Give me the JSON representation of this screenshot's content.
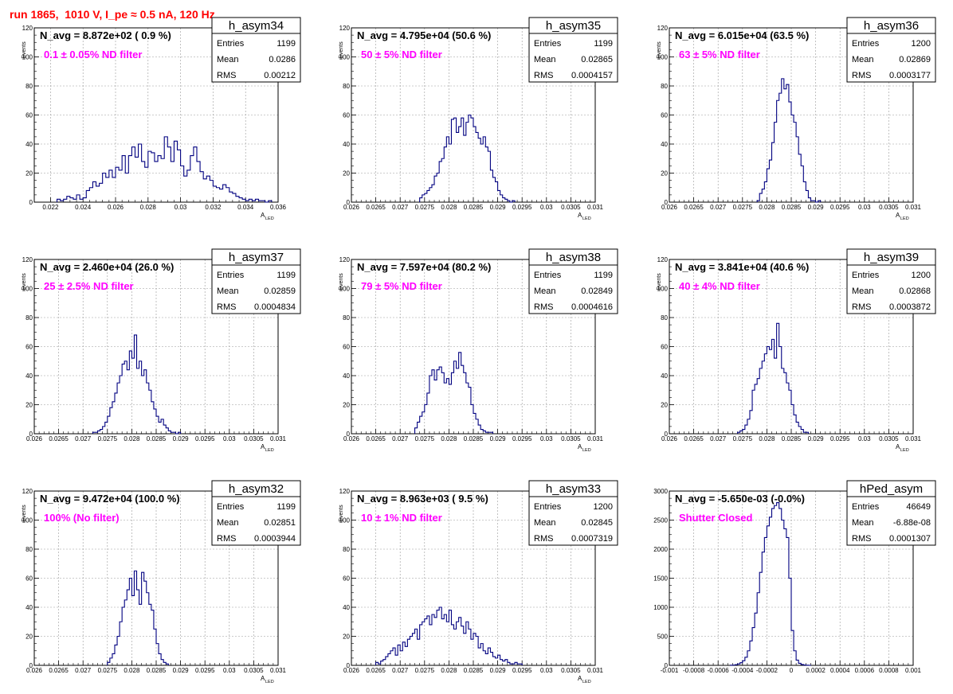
{
  "page_title": "run 1865,  1010 V, I_pe ≈ 0.5 nA, 120 Hz",
  "chart_data": [
    {
      "type": "bar",
      "name": "h_asym34",
      "navg": "N_avg = 8.872e+02 ( 0.9 %)",
      "annotation": "0.1 ± 0.05% ND filter",
      "stats": {
        "entries": "1199",
        "mean": "0.0286",
        "rms": "0.00212"
      },
      "xlabel": "A",
      "xlabel_sub": "LED",
      "ylabel": "Events",
      "xlim": [
        0.021,
        0.036
      ],
      "ylim": [
        0,
        120
      ],
      "xticks": [
        0.022,
        0.024,
        0.026,
        0.028,
        0.03,
        0.032,
        0.034,
        0.036
      ],
      "xtick_labels": [
        "0.022",
        "0.024",
        "0.026",
        "0.028",
        "0.03",
        "0.032",
        "0.034",
        "0.036"
      ],
      "yticks": [
        0,
        20,
        40,
        60,
        80,
        100,
        120
      ],
      "bin_start": 0.0224,
      "bin_width": 0.0002,
      "values": [
        2,
        1,
        2,
        4,
        3,
        2,
        5,
        2,
        3,
        8,
        10,
        14,
        11,
        13,
        20,
        17,
        22,
        17,
        24,
        22,
        32,
        20,
        32,
        38,
        31,
        40,
        28,
        24,
        35,
        34,
        28,
        32,
        30,
        45,
        38,
        28,
        42,
        36,
        25,
        18,
        22,
        32,
        38,
        28,
        21,
        16,
        18,
        15,
        11,
        10,
        9,
        12,
        10,
        7,
        6,
        4,
        3,
        2,
        1,
        2,
        1,
        2,
        1,
        1,
        0,
        1
      ]
    },
    {
      "type": "bar",
      "name": "h_asym35",
      "navg": "N_avg = 4.795e+04 (50.6 %)",
      "annotation": "50 ± 5% ND filter",
      "stats": {
        "entries": "1199",
        "mean": "0.02865",
        "rms": "0.0004157"
      },
      "xlabel": "A",
      "xlabel_sub": "LED",
      "ylabel": "Events",
      "xlim": [
        0.026,
        0.031
      ],
      "ylim": [
        0,
        120
      ],
      "xticks": [
        0.026,
        0.0265,
        0.027,
        0.0275,
        0.028,
        0.0285,
        0.029,
        0.0295,
        0.03,
        0.0305,
        0.031
      ],
      "xtick_labels": [
        "0.026",
        "0.0265",
        "0.027",
        "0.0275",
        "0.028",
        "0.0285",
        "0.029",
        "0.0295",
        "0.03",
        "0.0305",
        "0.031"
      ],
      "yticks": [
        0,
        20,
        40,
        60,
        80,
        100,
        120
      ],
      "bin_start": 0.0274,
      "bin_width": 5e-05,
      "values": [
        3,
        5,
        6,
        8,
        10,
        12,
        18,
        20,
        28,
        30,
        38,
        45,
        40,
        57,
        58,
        48,
        52,
        58,
        46,
        55,
        60,
        58,
        52,
        48,
        44,
        40,
        45,
        38,
        35,
        22,
        17,
        14,
        8,
        5,
        3,
        2,
        1,
        0,
        1
      ]
    },
    {
      "type": "bar",
      "name": "h_asym36",
      "navg": "N_avg = 6.015e+04 (63.5 %)",
      "annotation": "63 ± 5% ND filter",
      "stats": {
        "entries": "1200",
        "mean": "0.02869",
        "rms": "0.0003177"
      },
      "xlabel": "A",
      "xlabel_sub": "LED",
      "ylabel": "Events",
      "xlim": [
        0.026,
        0.031
      ],
      "ylim": [
        0,
        120
      ],
      "xticks": [
        0.026,
        0.0265,
        0.027,
        0.0275,
        0.028,
        0.0285,
        0.029,
        0.0295,
        0.03,
        0.0305,
        0.031
      ],
      "xtick_labels": [
        "0.026",
        "0.0265",
        "0.027",
        "0.0275",
        "0.028",
        "0.0285",
        "0.029",
        "0.0295",
        "0.03",
        "0.0305",
        "0.031"
      ],
      "yticks": [
        0,
        20,
        40,
        60,
        80,
        100,
        120
      ],
      "bin_start": 0.0278,
      "bin_width": 5e-05,
      "values": [
        1,
        6,
        9,
        14,
        23,
        29,
        41,
        55,
        70,
        75,
        85,
        78,
        81,
        69,
        60,
        55,
        45,
        33,
        25,
        14,
        8,
        3,
        1,
        1,
        0,
        1
      ]
    },
    {
      "type": "bar",
      "name": "h_asym37",
      "navg": "N_avg = 2.460e+04 (26.0 %)",
      "annotation": "25 ± 2.5% ND filter",
      "stats": {
        "entries": "1199",
        "mean": "0.02859",
        "rms": "0.0004834"
      },
      "xlabel": "A",
      "xlabel_sub": "LED",
      "ylabel": "Events",
      "xlim": [
        0.026,
        0.031
      ],
      "ylim": [
        0,
        120
      ],
      "xticks": [
        0.026,
        0.0265,
        0.027,
        0.0275,
        0.028,
        0.0285,
        0.029,
        0.0295,
        0.03,
        0.0305,
        0.031
      ],
      "xtick_labels": [
        "0.026",
        "0.0265",
        "0.027",
        "0.0275",
        "0.028",
        "0.0285",
        "0.029",
        "0.0295",
        "0.03",
        "0.0305",
        "0.031"
      ],
      "yticks": [
        0,
        20,
        40,
        60,
        80,
        100,
        120
      ],
      "bin_start": 0.0272,
      "bin_width": 5e-05,
      "values": [
        1,
        1,
        2,
        3,
        5,
        8,
        12,
        18,
        22,
        28,
        35,
        40,
        48,
        50,
        44,
        57,
        52,
        68,
        45,
        50,
        40,
        44,
        35,
        30,
        22,
        17,
        12,
        8,
        10,
        6,
        4,
        2,
        1,
        1,
        0,
        1
      ]
    },
    {
      "type": "bar",
      "name": "h_asym38",
      "navg": "N_avg = 7.597e+04 (80.2 %)",
      "annotation": "79 ± 5% ND filter",
      "stats": {
        "entries": "1199",
        "mean": "0.02849",
        "rms": "0.0004616"
      },
      "xlabel": "A",
      "xlabel_sub": "LED",
      "ylabel": "Events",
      "xlim": [
        0.026,
        0.031
      ],
      "ylim": [
        0,
        120
      ],
      "xticks": [
        0.026,
        0.0265,
        0.027,
        0.0275,
        0.028,
        0.0285,
        0.029,
        0.0295,
        0.03,
        0.0305,
        0.031
      ],
      "xtick_labels": [
        "0.026",
        "0.0265",
        "0.027",
        "0.0275",
        "0.028",
        "0.0285",
        "0.029",
        "0.0295",
        "0.03",
        "0.0305",
        "0.031"
      ],
      "yticks": [
        0,
        20,
        40,
        60,
        80,
        100,
        120
      ],
      "bin_start": 0.0273,
      "bin_width": 5e-05,
      "values": [
        4,
        8,
        12,
        15,
        20,
        28,
        40,
        44,
        37,
        44,
        46,
        42,
        35,
        38,
        34,
        42,
        50,
        45,
        56,
        47,
        42,
        35,
        32,
        20,
        14,
        10,
        6,
        3,
        2,
        1,
        1,
        1
      ]
    },
    {
      "type": "bar",
      "name": "h_asym39",
      "navg": "N_avg = 3.841e+04 (40.6 %)",
      "annotation": "40 ± 4% ND filter",
      "stats": {
        "entries": "1200",
        "mean": "0.02868",
        "rms": "0.0003872"
      },
      "xlabel": "A",
      "xlabel_sub": "LED",
      "ylabel": "Events",
      "xlim": [
        0.026,
        0.031
      ],
      "ylim": [
        0,
        120
      ],
      "xticks": [
        0.026,
        0.0265,
        0.027,
        0.0275,
        0.028,
        0.0285,
        0.029,
        0.0295,
        0.03,
        0.0305,
        0.031
      ],
      "xtick_labels": [
        "0.026",
        "0.0265",
        "0.027",
        "0.0275",
        "0.028",
        "0.0285",
        "0.029",
        "0.0295",
        "0.03",
        "0.0305",
        "0.031"
      ],
      "yticks": [
        0,
        20,
        40,
        60,
        80,
        100,
        120
      ],
      "bin_start": 0.0274,
      "bin_width": 5e-05,
      "values": [
        1,
        2,
        3,
        6,
        10,
        16,
        30,
        34,
        38,
        45,
        50,
        55,
        60,
        58,
        65,
        52,
        76,
        60,
        45,
        42,
        35,
        30,
        20,
        13,
        8,
        5,
        3,
        1,
        1
      ]
    },
    {
      "type": "bar",
      "name": "h_asym32",
      "navg": "N_avg = 9.472e+04 (100.0 %)",
      "annotation": "100% (No filter)",
      "stats": {
        "entries": "1199",
        "mean": "0.02851",
        "rms": "0.0003944"
      },
      "xlabel": "A",
      "xlabel_sub": "LED",
      "ylabel": "Events",
      "xlim": [
        0.026,
        0.031
      ],
      "ylim": [
        0,
        120
      ],
      "xticks": [
        0.026,
        0.0265,
        0.027,
        0.0275,
        0.028,
        0.0285,
        0.029,
        0.0295,
        0.03,
        0.0305,
        0.031
      ],
      "xtick_labels": [
        "0.026",
        "0.0265",
        "0.027",
        "0.0275",
        "0.028",
        "0.0285",
        "0.029",
        "0.0295",
        "0.03",
        "0.0305",
        "0.031"
      ],
      "yticks": [
        0,
        20,
        40,
        60,
        80,
        100,
        120
      ],
      "bin_start": 0.0275,
      "bin_width": 5e-05,
      "values": [
        2,
        5,
        8,
        14,
        20,
        30,
        40,
        45,
        52,
        60,
        48,
        65,
        52,
        42,
        64,
        58,
        50,
        42,
        38,
        25,
        15,
        8,
        4,
        2,
        1
      ]
    },
    {
      "type": "bar",
      "name": "h_asym33",
      "navg": "N_avg = 8.963e+03 ( 9.5 %)",
      "annotation": "10 ± 1% ND filter",
      "stats": {
        "entries": "1200",
        "mean": "0.02845",
        "rms": "0.0007319"
      },
      "xlabel": "A",
      "xlabel_sub": "LED",
      "ylabel": "Events",
      "xlim": [
        0.026,
        0.031
      ],
      "ylim": [
        0,
        120
      ],
      "xticks": [
        0.026,
        0.0265,
        0.027,
        0.0275,
        0.028,
        0.0285,
        0.029,
        0.0295,
        0.03,
        0.0305,
        0.031
      ],
      "xtick_labels": [
        "0.026",
        "0.0265",
        "0.027",
        "0.0275",
        "0.028",
        "0.0285",
        "0.029",
        "0.0295",
        "0.03",
        "0.0305",
        "0.031"
      ],
      "yticks": [
        0,
        20,
        40,
        60,
        80,
        100,
        120
      ],
      "bin_start": 0.0265,
      "bin_width": 5e-05,
      "values": [
        2,
        1,
        3,
        4,
        6,
        8,
        10,
        12,
        7,
        14,
        10,
        16,
        13,
        18,
        20,
        22,
        25,
        18,
        28,
        30,
        32,
        34,
        28,
        35,
        33,
        38,
        40,
        32,
        35,
        30,
        38,
        28,
        25,
        30,
        33,
        27,
        22,
        30,
        25,
        18,
        22,
        20,
        12,
        15,
        10,
        8,
        12,
        9,
        6,
        5,
        7,
        4,
        3,
        4,
        2,
        1,
        1,
        2,
        1,
        1
      ]
    },
    {
      "type": "bar",
      "name": "hPed_asym",
      "navg": "N_avg = -5.650e-03 (-0.0%)",
      "annotation": "Shutter Closed",
      "stats": {
        "entries": "46649",
        "mean": "-6.88e-08",
        "rms": "0.0001307"
      },
      "xlabel": "",
      "xlabel_sub": "",
      "ylabel": "",
      "xlim": [
        -0.001,
        0.001
      ],
      "ylim": [
        0,
        3000
      ],
      "xticks": [
        -0.001,
        -0.0008,
        -0.0006,
        -0.0004,
        -0.0002,
        0,
        0.0002,
        0.0004,
        0.0006,
        0.0008,
        0.001
      ],
      "xtick_labels": [
        "-0.001",
        "-0.0008",
        "-0.0006",
        "-0.0004",
        "-0.0002",
        "0",
        "0.0002",
        "0.0004",
        "0.0006",
        "0.0008",
        "0.001"
      ],
      "yticks": [
        0,
        500,
        1000,
        1500,
        2000,
        2500,
        3000
      ],
      "bin_start": -0.0005,
      "bin_width": 2e-05,
      "values": [
        2,
        5,
        12,
        25,
        45,
        80,
        140,
        250,
        420,
        650,
        900,
        1250,
        1600,
        1950,
        2200,
        2400,
        2550,
        2700,
        2750,
        2800,
        2700,
        2500,
        2350,
        2200,
        1500,
        600,
        250,
        90,
        35,
        15,
        6,
        3,
        1
      ]
    }
  ]
}
